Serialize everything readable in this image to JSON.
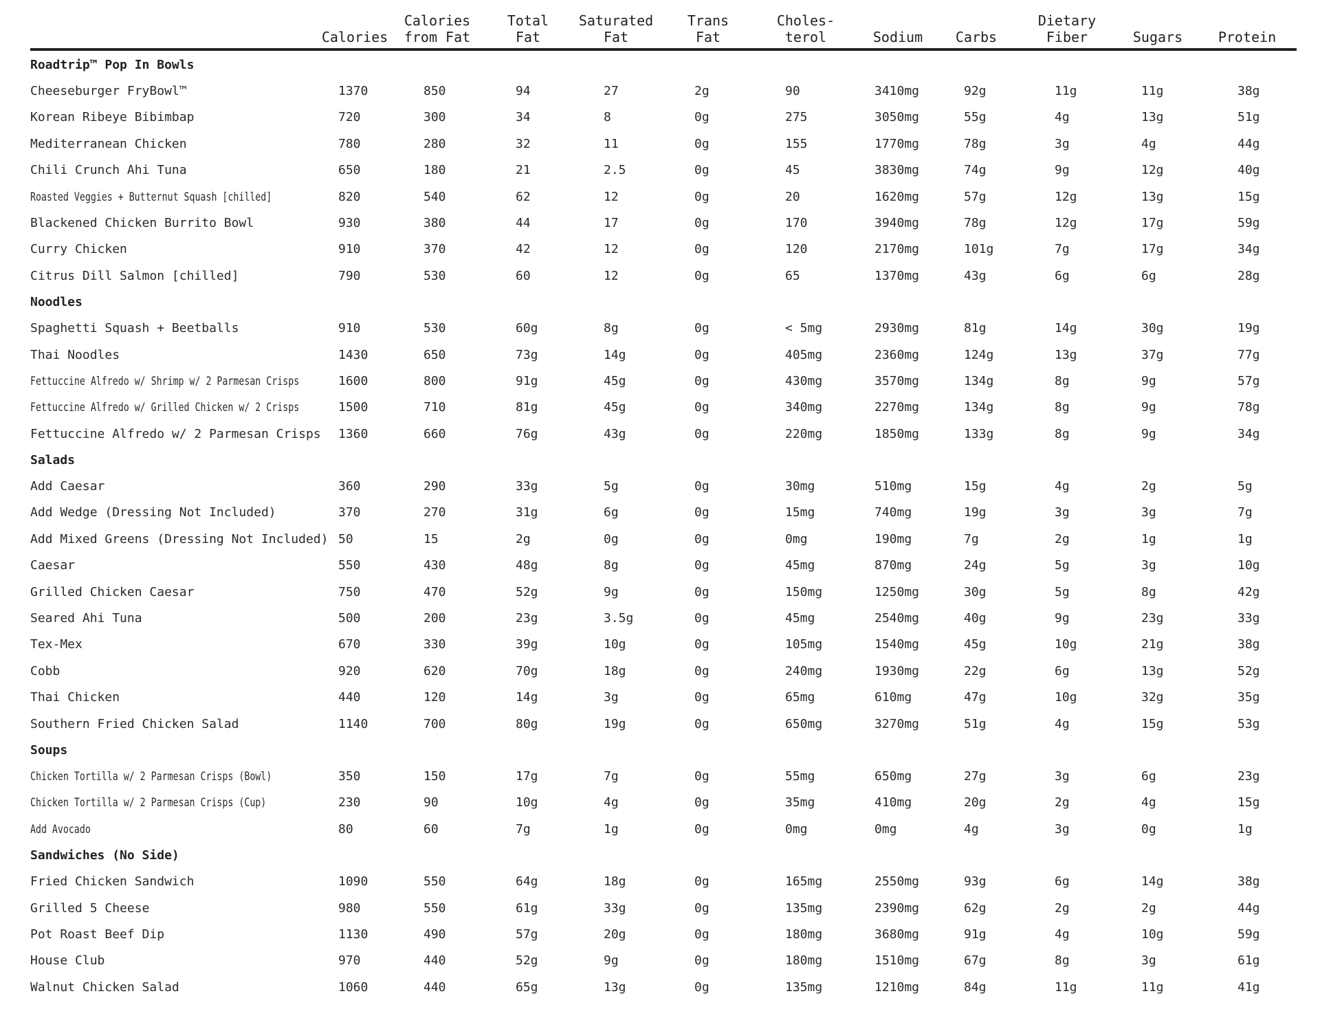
{
  "headers": [
    "Calories",
    "Calories\nfrom Fat",
    "Total\nFat",
    "Saturated\nFat",
    "Trans\nFat",
    "Choles-\nterol",
    "Sodium",
    "Carbs",
    "Dietary\nFiber",
    "Sugars",
    "Protein"
  ],
  "sections": [
    {
      "title": "Roadtrip™ Pop In Bowls",
      "rows": [
        {
          "name": "Cheeseburger FryBowl™",
          "values": [
            "1370",
            "850",
            "94",
            "27",
            "2g",
            "90",
            "3410mg",
            "92g",
            "11g",
            "11g",
            "38g"
          ]
        },
        {
          "name": "Korean Ribeye Bibimbap",
          "values": [
            "720",
            "300",
            "34",
            "8",
            "0g",
            "275",
            "3050mg",
            "55g",
            "4g",
            "13g",
            "51g"
          ]
        },
        {
          "name": "Mediterranean Chicken",
          "values": [
            "780",
            "280",
            "32",
            "11",
            "0g",
            "155",
            "1770mg",
            "78g",
            "3g",
            "4g",
            "44g"
          ]
        },
        {
          "name": "Chili Crunch Ahi Tuna",
          "values": [
            "650",
            "180",
            "21",
            "2.5",
            "0g",
            "45",
            "3830mg",
            "74g",
            "9g",
            "12g",
            "40g"
          ]
        },
        {
          "name": "Roasted Veggies + Butternut Squash [chilled]",
          "condensed": true,
          "values": [
            "820",
            "540",
            "62",
            "12",
            "0g",
            "20",
            "1620mg",
            "57g",
            "12g",
            "13g",
            "15g"
          ]
        },
        {
          "name": "Blackened Chicken Burrito Bowl",
          "values": [
            "930",
            "380",
            "44",
            "17",
            "0g",
            "170",
            "3940mg",
            "78g",
            "12g",
            "17g",
            "59g"
          ]
        },
        {
          "name": "Curry Chicken",
          "values": [
            "910",
            "370",
            "42",
            "12",
            "0g",
            "120",
            "2170mg",
            "101g",
            "7g",
            "17g",
            "34g"
          ]
        },
        {
          "name": "Citrus Dill Salmon [chilled]",
          "values": [
            "790",
            "530",
            "60",
            "12",
            "0g",
            "65",
            "1370mg",
            "43g",
            "6g",
            "6g",
            "28g"
          ]
        }
      ]
    },
    {
      "title": "Noodles",
      "rows": [
        {
          "name": "Spaghetti Squash + Beetballs",
          "values": [
            "910",
            "530",
            "60g",
            "8g",
            "0g",
            "< 5mg",
            "2930mg",
            "81g",
            "14g",
            "30g",
            "19g"
          ]
        },
        {
          "name": "Thai Noodles",
          "values": [
            "1430",
            "650",
            "73g",
            "14g",
            "0g",
            "405mg",
            "2360mg",
            "124g",
            "13g",
            "37g",
            "77g"
          ]
        },
        {
          "name": "Fettuccine Alfredo w/ Shrimp w/ 2 Parmesan Crisps",
          "condensed": true,
          "values": [
            "1600",
            "800",
            "91g",
            "45g",
            "0g",
            "430mg",
            "3570mg",
            "134g",
            "8g",
            "9g",
            "57g"
          ]
        },
        {
          "name": "Fettuccine Alfredo w/ Grilled Chicken w/ 2 Crisps",
          "condensed": true,
          "values": [
            "1500",
            "710",
            "81g",
            "45g",
            "0g",
            "340mg",
            "2270mg",
            "134g",
            "8g",
            "9g",
            "78g"
          ]
        },
        {
          "name": "Fettuccine Alfredo w/ 2 Parmesan Crisps",
          "values": [
            "1360",
            "660",
            "76g",
            "43g",
            "0g",
            "220mg",
            "1850mg",
            "133g",
            "8g",
            "9g",
            "34g"
          ]
        }
      ]
    },
    {
      "title": "Salads",
      "rows": [
        {
          "name": "Add Caesar",
          "values": [
            "360",
            "290",
            "33g",
            "5g",
            "0g",
            "30mg",
            "510mg",
            "15g",
            "4g",
            "2g",
            "5g"
          ]
        },
        {
          "name": "Add Wedge (Dressing Not Included)",
          "values": [
            "370",
            "270",
            "31g",
            "6g",
            "0g",
            "15mg",
            "740mg",
            "19g",
            "3g",
            "3g",
            "7g"
          ]
        },
        {
          "name": "Add Mixed Greens (Dressing Not Included)",
          "values": [
            "50",
            "15",
            "2g",
            "0g",
            "0g",
            "0mg",
            "190mg",
            "7g",
            "2g",
            "1g",
            "1g"
          ]
        },
        {
          "name": "Caesar",
          "values": [
            "550",
            "430",
            "48g",
            "8g",
            "0g",
            "45mg",
            "870mg",
            "24g",
            "5g",
            "3g",
            "10g"
          ]
        },
        {
          "name": "Grilled Chicken Caesar",
          "values": [
            "750",
            "470",
            "52g",
            "9g",
            "0g",
            "150mg",
            "1250mg",
            "30g",
            "5g",
            "8g",
            "42g"
          ]
        },
        {
          "name": "Seared Ahi Tuna",
          "values": [
            "500",
            "200",
            "23g",
            "3.5g",
            "0g",
            "45mg",
            "2540mg",
            "40g",
            "9g",
            "23g",
            "33g"
          ]
        },
        {
          "name": "Tex-Mex",
          "values": [
            "670",
            "330",
            "39g",
            "10g",
            "0g",
            "105mg",
            "1540mg",
            "45g",
            "10g",
            "21g",
            "38g"
          ]
        },
        {
          "name": "Cobb",
          "values": [
            "920",
            "620",
            "70g",
            "18g",
            "0g",
            "240mg",
            "1930mg",
            "22g",
            "6g",
            "13g",
            "52g"
          ]
        },
        {
          "name": "Thai Chicken",
          "values": [
            "440",
            "120",
            "14g",
            "3g",
            "0g",
            "65mg",
            "610mg",
            "47g",
            "10g",
            "32g",
            "35g"
          ]
        },
        {
          "name": "Southern Fried Chicken Salad",
          "values": [
            "1140",
            "700",
            "80g",
            "19g",
            "0g",
            "650mg",
            "3270mg",
            "51g",
            "4g",
            "15g",
            "53g"
          ]
        }
      ]
    },
    {
      "title": "Soups",
      "rows": [
        {
          "name": "Chicken Tortilla w/ 2 Parmesan Crisps (Bowl)",
          "condensed": true,
          "values": [
            "350",
            "150",
            "17g",
            "7g",
            "0g",
            "55mg",
            "650mg",
            "27g",
            "3g",
            "6g",
            "23g"
          ]
        },
        {
          "name": "Chicken Tortilla w/ 2 Parmesan Crisps (Cup)",
          "condensed": true,
          "values": [
            "230",
            "90",
            "10g",
            "4g",
            "0g",
            "35mg",
            "410mg",
            "20g",
            "2g",
            "4g",
            "15g"
          ]
        },
        {
          "name": "Add Avocado",
          "condensed": true,
          "values": [
            "80",
            "60",
            "7g",
            "1g",
            "0g",
            "0mg",
            "0mg",
            "4g",
            "3g",
            "0g",
            "1g"
          ]
        }
      ]
    },
    {
      "title": "Sandwiches (No Side)",
      "rows": [
        {
          "name": "Fried Chicken Sandwich",
          "values": [
            "1090",
            "550",
            "64g",
            "18g",
            "0g",
            "165mg",
            "2550mg",
            "93g",
            "6g",
            "14g",
            "38g"
          ]
        },
        {
          "name": "Grilled 5 Cheese",
          "values": [
            "980",
            "550",
            "61g",
            "33g",
            "0g",
            "135mg",
            "2390mg",
            "62g",
            "2g",
            "2g",
            "44g"
          ]
        },
        {
          "name": "Pot Roast Beef Dip",
          "values": [
            "1130",
            "490",
            "57g",
            "20g",
            "0g",
            "180mg",
            "3680mg",
            "91g",
            "4g",
            "10g",
            "59g"
          ]
        },
        {
          "name": "House Club",
          "values": [
            "970",
            "440",
            "52g",
            "9g",
            "0g",
            "180mg",
            "1510mg",
            "67g",
            "8g",
            "3g",
            "61g"
          ]
        },
        {
          "name": "Walnut Chicken Salad",
          "values": [
            "1060",
            "440",
            "65g",
            "13g",
            "0g",
            "135mg",
            "1210mg",
            "84g",
            "11g",
            "11g",
            "41g"
          ]
        }
      ]
    }
  ]
}
